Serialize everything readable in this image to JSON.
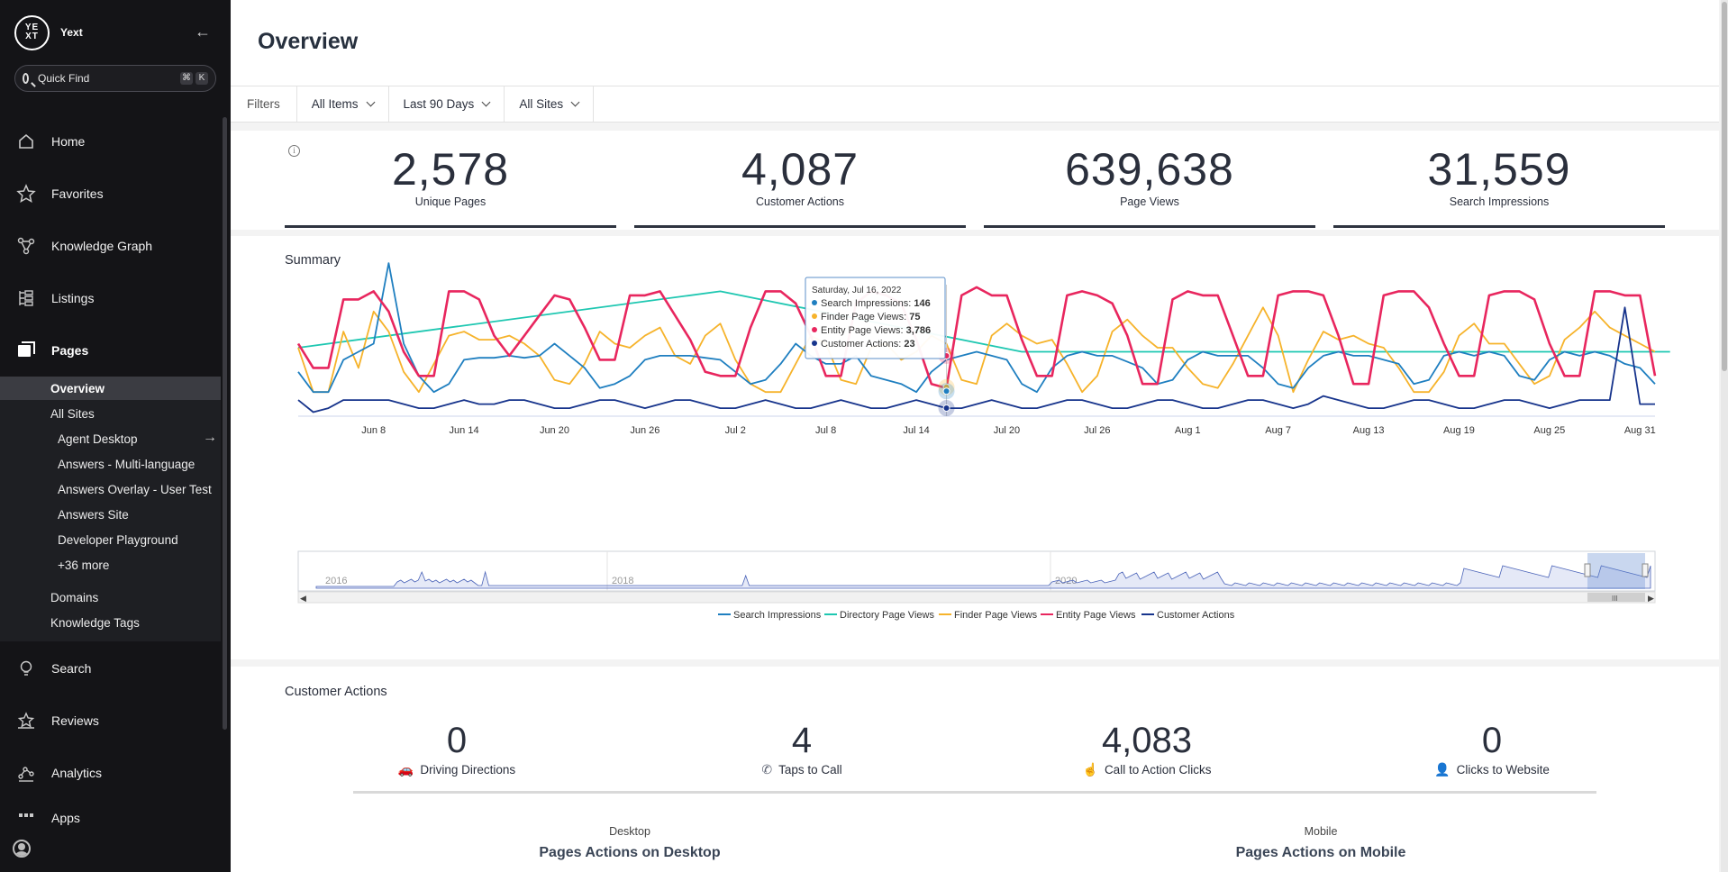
{
  "brand": {
    "logo_text_top": "YE",
    "logo_text_bottom": "XT",
    "name": "Yext"
  },
  "quick_find": {
    "placeholder": "Quick Find",
    "shortcut_keys": [
      "⌘",
      "K"
    ]
  },
  "nav": {
    "items": [
      {
        "label": "Home",
        "icon": "home-icon"
      },
      {
        "label": "Favorites",
        "icon": "star-icon"
      },
      {
        "label": "Knowledge Graph",
        "icon": "graph-icon"
      },
      {
        "label": "Listings",
        "icon": "listings-icon"
      },
      {
        "label": "Pages",
        "icon": "pages-icon"
      },
      {
        "label": "Search",
        "icon": "lightbulb-icon"
      },
      {
        "label": "Reviews",
        "icon": "reviews-icon"
      },
      {
        "label": "Analytics",
        "icon": "analytics-icon"
      },
      {
        "label": "Apps",
        "icon": "apps-icon"
      }
    ],
    "pages_sub": [
      {
        "label": "Overview"
      },
      {
        "label": "All Sites"
      },
      {
        "label": "Agent Desktop"
      },
      {
        "label": "Answers - Multi-language"
      },
      {
        "label": "Answers Overlay - User Test"
      },
      {
        "label": "Answers Site"
      },
      {
        "label": "Developer Playground"
      },
      {
        "label": "+36 more"
      },
      {
        "label": "Domains"
      },
      {
        "label": "Knowledge Tags"
      }
    ]
  },
  "page": {
    "title": "Overview"
  },
  "filters": {
    "label": "Filters",
    "items": [
      "All Items",
      "Last 90 Days",
      "All Sites"
    ]
  },
  "metrics": [
    {
      "value": "2,578",
      "label": "Unique Pages"
    },
    {
      "value": "4,087",
      "label": "Customer Actions"
    },
    {
      "value": "639,638",
      "label": "Page Views"
    },
    {
      "value": "31,559",
      "label": "Search Impressions"
    }
  ],
  "summary": {
    "title": "Summary",
    "tooltip": {
      "date": "Saturday, Jul 16, 2022",
      "rows": [
        {
          "name": "Search Impressions",
          "value": "146",
          "color": "#1f7fc0"
        },
        {
          "name": "Finder Page Views",
          "value": "75",
          "color": "#f6b32b"
        },
        {
          "name": "Entity Page Views",
          "value": "3,786",
          "color": "#e8265e"
        },
        {
          "name": "Customer Actions",
          "value": "23",
          "color": "#17348c"
        }
      ]
    },
    "navigator_years": [
      "2016",
      "2018",
      "2020"
    ]
  },
  "chart_data": {
    "type": "line",
    "x_ticks": [
      "Jun 8",
      "Jun 14",
      "Jun 20",
      "Jun 26",
      "Jul 2",
      "Jul 8",
      "Jul 14",
      "Jul 20",
      "Jul 26",
      "Aug 1",
      "Aug 7",
      "Aug 13",
      "Aug 19",
      "Aug 25",
      "Aug 31"
    ],
    "x_start": "2022-06-03",
    "x_end": "2022-09-01",
    "legend_position": "bottom",
    "series": [
      {
        "name": "Search Impressions",
        "color": "#1f7fc0",
        "values": [
          110,
          60,
          60,
          140,
          160,
          180,
          380,
          180,
          100,
          60,
          80,
          140,
          145,
          145,
          150,
          145,
          150,
          180,
          150,
          120,
          70,
          80,
          100,
          140,
          150,
          150,
          150,
          145,
          140,
          110,
          80,
          90,
          130,
          180,
          150,
          130,
          130,
          150,
          100,
          90,
          80,
          60,
          110,
          140,
          150,
          160,
          150,
          140,
          80,
          60,
          120,
          150,
          160,
          150,
          150,
          135,
          120,
          80,
          90,
          140,
          160,
          150,
          150,
          150,
          120,
          80,
          70,
          120,
          150,
          160,
          150,
          150,
          140,
          130,
          80,
          90,
          150,
          160,
          150,
          160,
          150,
          100,
          90,
          140,
          160,
          150,
          160,
          150,
          130,
          120,
          80
        ]
      },
      {
        "name": "Directory Page Views",
        "color": "#1ec7b1",
        "values": [
          170,
          null,
          null,
          null,
          null,
          null,
          null,
          null,
          null,
          null,
          null,
          null,
          null,
          null,
          null,
          null,
          null,
          null,
          null,
          null,
          null,
          null,
          null,
          null,
          null,
          null,
          null,
          null,
          null,
          null,
          null,
          null,
          null,
          null,
          null,
          null,
          null,
          null,
          null,
          null,
          null,
          null,
          null,
          null,
          null,
          null,
          null,
          null,
          null,
          null,
          null,
          null,
          null,
          null,
          null,
          null,
          null,
          null,
          null,
          null,
          null,
          null,
          null,
          null,
          null,
          null,
          null,
          null,
          null,
          null,
          null,
          null,
          null,
          null,
          null,
          null,
          null,
          null,
          null,
          null,
          null,
          null,
          null,
          null,
          null,
          null,
          null,
          null,
          null,
          null,
          160
        ],
        "points": [
          [
            0,
            170
          ],
          [
            28,
            310
          ],
          [
            48,
            160
          ],
          [
            91,
            160
          ]
        ]
      },
      {
        "name": "Finder Page Views",
        "color": "#f6b32b",
        "values": [
          170,
          60,
          60,
          210,
          120,
          260,
          210,
          110,
          60,
          130,
          200,
          210,
          190,
          190,
          200,
          180,
          150,
          90,
          80,
          130,
          210,
          180,
          170,
          200,
          220,
          150,
          130,
          200,
          230,
          140,
          80,
          60,
          60,
          130,
          200,
          180,
          90,
          80,
          170,
          180,
          140,
          160,
          200,
          180,
          90,
          80,
          200,
          230,
          200,
          180,
          190,
          130,
          60,
          100,
          210,
          240,
          200,
          170,
          170,
          120,
          80,
          70,
          130,
          200,
          270,
          200,
          60,
          140,
          210,
          190,
          200,
          180,
          170,
          120,
          60,
          60,
          110,
          200,
          230,
          180,
          180,
          130,
          80,
          100,
          190,
          220,
          260,
          220,
          200,
          180,
          160,
          170
        ]
      },
      {
        "name": "Entity Page Views",
        "color": "#e8265e",
        "values": [
          180,
          120,
          120,
          290,
          290,
          310,
          260,
          160,
          100,
          100,
          310,
          310,
          290,
          200,
          150,
          200,
          250,
          300,
          290,
          220,
          140,
          140,
          300,
          300,
          310,
          250,
          190,
          110,
          100,
          100,
          220,
          310,
          310,
          280,
          200,
          100,
          100,
          280,
          310,
          300,
          280,
          190,
          80,
          70,
          300,
          320,
          300,
          300,
          190,
          100,
          100,
          300,
          310,
          300,
          280,
          200,
          80,
          80,
          290,
          310,
          300,
          300,
          200,
          100,
          100,
          300,
          310,
          310,
          300,
          200,
          80,
          80,
          300,
          310,
          310,
          270,
          180,
          100,
          100,
          300,
          310,
          310,
          290,
          180,
          100,
          100,
          310,
          310,
          300,
          300,
          100,
          320,
          270
        ]
      },
      {
        "name": "Customer Actions",
        "color": "#17348c",
        "values": [
          40,
          10,
          20,
          40,
          40,
          40,
          40,
          30,
          20,
          20,
          30,
          40,
          30,
          30,
          40,
          40,
          30,
          20,
          20,
          30,
          40,
          40,
          30,
          20,
          30,
          40,
          40,
          30,
          20,
          20,
          30,
          40,
          30,
          20,
          20,
          30,
          40,
          30,
          20,
          20,
          30,
          40,
          30,
          20,
          20,
          30,
          40,
          30,
          20,
          20,
          30,
          40,
          40,
          30,
          20,
          20,
          30,
          40,
          40,
          30,
          20,
          20,
          30,
          40,
          40,
          30,
          20,
          30,
          50,
          40,
          30,
          20,
          20,
          30,
          40,
          40,
          30,
          20,
          20,
          30,
          40,
          40,
          30,
          20,
          30,
          40,
          40,
          40,
          270,
          30,
          30,
          30,
          20
        ]
      }
    ],
    "ylim": [
      0,
      340
    ]
  },
  "customer_actions": {
    "title": "Customer Actions",
    "items": [
      {
        "value": "0",
        "label": "Driving Directions",
        "icon": "car-icon"
      },
      {
        "value": "4",
        "label": "Taps to Call",
        "icon": "phone-icon"
      },
      {
        "value": "4,083",
        "label": "Call to Action Clicks",
        "icon": "pointer-icon"
      },
      {
        "value": "0",
        "label": "Clicks to Website",
        "icon": "person-icon"
      }
    ],
    "desktop_label": "Desktop",
    "desktop_title": "Pages Actions on Desktop",
    "mobile_label": "Mobile",
    "mobile_title": "Pages Actions on Mobile"
  }
}
